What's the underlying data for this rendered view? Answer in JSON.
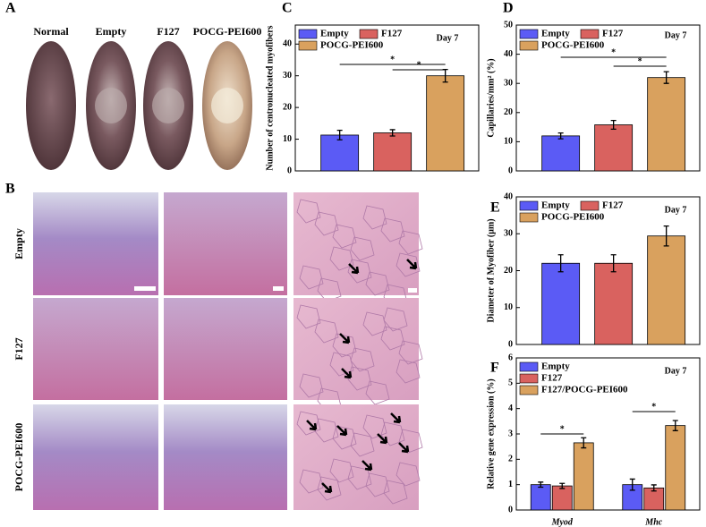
{
  "photos": {
    "panel_a": {
      "letter": "A",
      "labels": [
        "Normal",
        "Empty",
        "F127",
        "POCG-PEI600"
      ]
    },
    "panel_b": {
      "letter": "B",
      "rows": [
        "Empty",
        "F127",
        "POCG-PEI600"
      ]
    }
  },
  "chart_data": [
    {
      "type": "bar",
      "letter": "C",
      "annotation": "Day 7",
      "stars": [
        "*",
        "*"
      ],
      "ylabel": "Number of centronucleated myofibers",
      "ylim": [
        0,
        46
      ],
      "yticks": [
        0,
        10,
        20,
        30,
        40
      ],
      "series": [
        {
          "name": "Empty",
          "color": "#5b5bf5",
          "values": [
            11.3
          ],
          "errors": [
            1.5
          ]
        },
        {
          "name": "F127",
          "color": "#d9625f",
          "values": [
            12
          ],
          "errors": [
            1.0
          ]
        },
        {
          "name": "POCG-PEI600",
          "color": "#d9a15e",
          "values": [
            30
          ],
          "errors": [
            2.0
          ]
        }
      ]
    },
    {
      "type": "bar",
      "letter": "D",
      "annotation": "Day 7",
      "stars": [
        "*",
        "*"
      ],
      "ylabel": "Capillaries/mm² (%)",
      "ylim": [
        0,
        50
      ],
      "yticks": [
        0,
        10,
        20,
        30,
        40,
        50
      ],
      "series": [
        {
          "name": "Empty",
          "color": "#5b5bf5",
          "values": [
            12
          ],
          "errors": [
            1.0
          ]
        },
        {
          "name": "F127",
          "color": "#d9625f",
          "values": [
            15.8
          ],
          "errors": [
            1.5
          ]
        },
        {
          "name": "POCG-PEI600",
          "color": "#d9a15e",
          "values": [
            32
          ],
          "errors": [
            2.0
          ]
        }
      ]
    },
    {
      "type": "bar",
      "letter": "E",
      "annotation": "Day 7",
      "ylabel": "Diameter of Myofiber (μm)",
      "ylim": [
        0,
        40
      ],
      "yticks": [
        0,
        10,
        20,
        30,
        40
      ],
      "series": [
        {
          "name": "Empty",
          "color": "#5b5bf5",
          "values": [
            22
          ],
          "errors": [
            2.3
          ]
        },
        {
          "name": "F127",
          "color": "#d9625f",
          "values": [
            22
          ],
          "errors": [
            2.3
          ]
        },
        {
          "name": "POCG-PEI600",
          "color": "#d9a15e",
          "values": [
            29.4
          ],
          "errors": [
            2.7
          ]
        }
      ]
    },
    {
      "type": "bar",
      "letter": "F",
      "annotation": "Day 7",
      "stars": [
        "*",
        "*"
      ],
      "ylabel": "Relative gene expression (%)",
      "categories": [
        "Myod",
        "Mhc"
      ],
      "ylim": [
        0,
        6
      ],
      "yticks": [
        0,
        1,
        2,
        3,
        4,
        5,
        6
      ],
      "series": [
        {
          "name": "Empty",
          "color": "#5b5bf5",
          "values": [
            1.0,
            1.0
          ],
          "errors": [
            0.1,
            0.22
          ]
        },
        {
          "name": "F127",
          "color": "#d9625f",
          "values": [
            0.95,
            0.87
          ],
          "errors": [
            0.1,
            0.12
          ]
        },
        {
          "name": "F127/POCG-PEI600",
          "color": "#d9a15e",
          "values": [
            2.65,
            3.33
          ],
          "errors": [
            0.2,
            0.2
          ]
        }
      ]
    }
  ]
}
